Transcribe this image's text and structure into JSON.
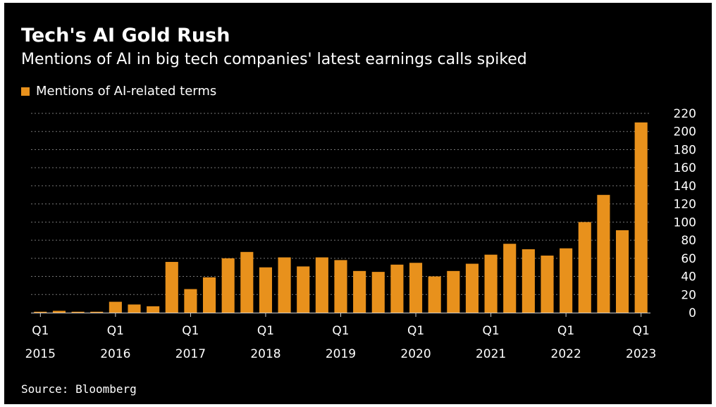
{
  "title": "Tech's AI Gold Rush",
  "subtitle": "Mentions of AI in big tech companies' latest earnings calls spiked",
  "legend_label": "Mentions of AI-related terms",
  "source": "Source: Bloomberg",
  "colors": {
    "background": "#000000",
    "bar": "#e8911c",
    "text": "#ffffff",
    "grid": "#777777"
  },
  "chart_data": {
    "type": "bar",
    "title": "Tech's AI Gold Rush",
    "subtitle": "Mentions of AI in big tech companies' latest earnings calls spiked",
    "series": [
      {
        "name": "Mentions of AI-related terms",
        "values": [
          1,
          2,
          1,
          1,
          12,
          9,
          7,
          56,
          26,
          39,
          60,
          67,
          50,
          61,
          51,
          61,
          58,
          46,
          45,
          53,
          55,
          40,
          46,
          54,
          64,
          76,
          70,
          63,
          71,
          100,
          130,
          91,
          210
        ]
      }
    ],
    "categories": [
      "Q1 2015",
      "Q2 2015",
      "Q3 2015",
      "Q4 2015",
      "Q1 2016",
      "Q2 2016",
      "Q3 2016",
      "Q4 2016",
      "Q1 2017",
      "Q2 2017",
      "Q3 2017",
      "Q4 2017",
      "Q1 2018",
      "Q2 2018",
      "Q3 2018",
      "Q4 2018",
      "Q1 2019",
      "Q2 2019",
      "Q3 2019",
      "Q4 2019",
      "Q1 2020",
      "Q2 2020",
      "Q3 2020",
      "Q4 2020",
      "Q1 2021",
      "Q2 2021",
      "Q3 2021",
      "Q4 2021",
      "Q1 2022",
      "Q2 2022",
      "Q3 2022",
      "Q4 2022",
      "Q1 2023"
    ],
    "x_tick_labels": [
      {
        "category": "Q1 2015",
        "quarter": "Q1",
        "year": "2015"
      },
      {
        "category": "Q1 2016",
        "quarter": "Q1",
        "year": "2016"
      },
      {
        "category": "Q1 2017",
        "quarter": "Q1",
        "year": "2017"
      },
      {
        "category": "Q1 2018",
        "quarter": "Q1",
        "year": "2018"
      },
      {
        "category": "Q1 2019",
        "quarter": "Q1",
        "year": "2019"
      },
      {
        "category": "Q1 2020",
        "quarter": "Q1",
        "year": "2020"
      },
      {
        "category": "Q1 2021",
        "quarter": "Q1",
        "year": "2021"
      },
      {
        "category": "Q1 2022",
        "quarter": "Q1",
        "year": "2022"
      },
      {
        "category": "Q1 2023",
        "quarter": "Q1",
        "year": "2023"
      }
    ],
    "y_ticks": [
      0,
      20,
      40,
      60,
      80,
      100,
      120,
      140,
      160,
      180,
      200,
      220
    ],
    "ylim": [
      0,
      220
    ],
    "y_axis_side": "right",
    "grid": "horizontal dotted",
    "legend_position": "top-left"
  }
}
